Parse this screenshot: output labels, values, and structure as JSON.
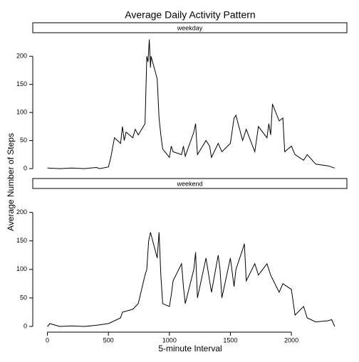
{
  "chart_data": {
    "type": "line",
    "title": "Average Daily Activity Pattern",
    "xlabel": "5-minute Interval",
    "ylabel": "Average Number of Steps",
    "xlim": [
      -120,
      2455
    ],
    "ylim": [
      -10,
      242
    ],
    "xticks": [
      0,
      500,
      1000,
      1500,
      2000
    ],
    "yticks": [
      0,
      50,
      100,
      150,
      200
    ],
    "series": [
      {
        "name": "weekday",
        "color": "#000000",
        "x": [
          0,
          100,
          200,
          300,
          400,
          430,
          500,
          520,
          550,
          600,
          615,
          630,
          645,
          700,
          720,
          745,
          800,
          815,
          825,
          835,
          845,
          850,
          900,
          915,
          930,
          945,
          1000,
          1015,
          1030,
          1100,
          1115,
          1130,
          1200,
          1215,
          1230,
          1300,
          1330,
          1345,
          1400,
          1430,
          1500,
          1530,
          1545,
          1600,
          1630,
          1700,
          1730,
          1800,
          1815,
          1830,
          1845,
          1900,
          1930,
          1945,
          2000,
          2030,
          2100,
          2130,
          2200,
          2300,
          2355
        ],
        "values": [
          1,
          0,
          1,
          0,
          2,
          0,
          3,
          20,
          55,
          45,
          75,
          50,
          65,
          55,
          70,
          60,
          80,
          200,
          190,
          230,
          180,
          200,
          160,
          90,
          60,
          35,
          20,
          40,
          30,
          25,
          40,
          22,
          65,
          80,
          25,
          50,
          40,
          20,
          45,
          30,
          45,
          90,
          95,
          50,
          70,
          30,
          75,
          55,
          80,
          60,
          115,
          85,
          90,
          30,
          40,
          25,
          15,
          25,
          8,
          5,
          1
        ]
      },
      {
        "name": "weekend",
        "color": "#000000",
        "x": [
          0,
          20,
          100,
          200,
          300,
          400,
          500,
          600,
          615,
          700,
          745,
          800,
          815,
          830,
          845,
          900,
          915,
          930,
          945,
          1000,
          1015,
          1030,
          1100,
          1115,
          1130,
          1200,
          1215,
          1230,
          1300,
          1330,
          1345,
          1400,
          1415,
          1430,
          1500,
          1530,
          1545,
          1600,
          1615,
          1630,
          1700,
          1730,
          1800,
          1830,
          1900,
          1930,
          2000,
          2030,
          2100,
          2130,
          2200,
          2300,
          2330,
          2355
        ],
        "values": [
          0,
          5,
          0,
          1,
          0,
          2,
          5,
          15,
          25,
          30,
          40,
          90,
          100,
          150,
          165,
          120,
          165,
          90,
          40,
          35,
          55,
          80,
          110,
          70,
          40,
          100,
          130,
          50,
          120,
          80,
          60,
          125,
          100,
          50,
          120,
          70,
          100,
          135,
          145,
          80,
          110,
          90,
          110,
          90,
          60,
          75,
          65,
          20,
          35,
          15,
          8,
          10,
          12,
          0
        ]
      }
    ]
  }
}
